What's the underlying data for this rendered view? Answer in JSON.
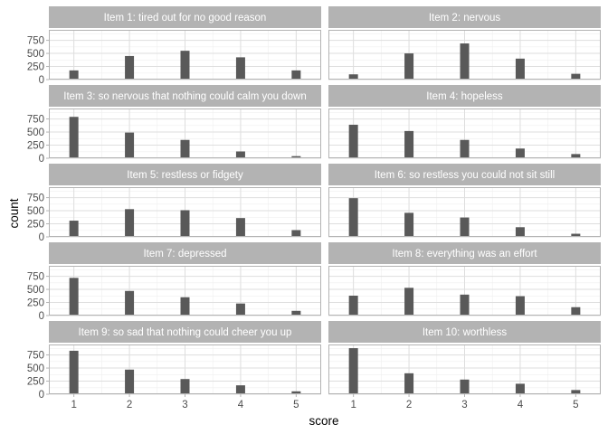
{
  "chart_data": {
    "type": "bar",
    "layout": "facet_wrap",
    "ncol": 2,
    "xlabel": "score",
    "ylabel": "count",
    "x_ticks": [
      1,
      2,
      3,
      4,
      5
    ],
    "y_ticks": [
      0,
      250,
      500,
      750
    ],
    "ylim": [
      0,
      950
    ],
    "xlim": [
      0.55,
      5.45
    ],
    "grid": true,
    "theme": "light",
    "colors": {
      "bar": "#595959",
      "strip_bg": "#b3b3b3",
      "strip_text": "#ffffff",
      "panel_border": "#b3b3b3",
      "grid_major": "#dedede",
      "grid_minor": "#efefef"
    },
    "panels": [
      {
        "title": "Item 1: tired out for no good reason",
        "values": [
          175,
          450,
          550,
          425,
          175
        ]
      },
      {
        "title": "Item 2: nervous",
        "values": [
          100,
          500,
          690,
          400,
          110
        ]
      },
      {
        "title": "Item 3: so nervous that nothing could calm you down",
        "values": [
          790,
          490,
          350,
          130,
          40
        ]
      },
      {
        "title": "Item 4: hopeless",
        "values": [
          640,
          520,
          350,
          185,
          80
        ]
      },
      {
        "title": "Item 5: restless or fidgety",
        "values": [
          310,
          530,
          510,
          360,
          130
        ]
      },
      {
        "title": "Item 6: so restless you could not sit still",
        "values": [
          740,
          460,
          370,
          185,
          60
        ]
      },
      {
        "title": "Item 7: depressed",
        "values": [
          720,
          470,
          350,
          230,
          90
        ]
      },
      {
        "title": "Item 8: everything was an effort",
        "values": [
          380,
          530,
          400,
          370,
          160
        ]
      },
      {
        "title": "Item 9: so sad that nothing could cheer you up",
        "values": [
          830,
          470,
          290,
          170,
          55
        ]
      },
      {
        "title": "Item 10: worthless",
        "values": [
          880,
          400,
          280,
          200,
          80
        ]
      }
    ]
  }
}
